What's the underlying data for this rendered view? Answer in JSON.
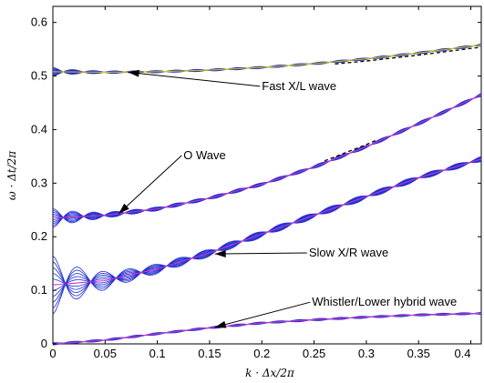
{
  "chart_data": {
    "type": "line",
    "title": "",
    "xlabel": "k · Δx/2π",
    "ylabel": "ω · Δt/2π",
    "xlim": [
      0,
      0.41
    ],
    "ylim": [
      0,
      0.63
    ],
    "grid": false,
    "x_ticks": [
      0,
      0.05,
      0.1,
      0.15,
      0.2,
      0.25,
      0.3,
      0.35,
      0.4
    ],
    "x_tick_labels": [
      "0",
      "0.05",
      "0.1",
      "0.15",
      "0.2",
      "0.25",
      "0.3",
      "0.35",
      "0.4"
    ],
    "y_ticks": [
      0,
      0.1,
      0.2,
      0.3,
      0.4,
      0.5,
      0.6
    ],
    "y_tick_labels": [
      "0",
      "0.1",
      "0.2",
      "0.3",
      "0.4",
      "0.5",
      "0.6"
    ],
    "colors": {
      "contour": "#1f2fd0",
      "theory": "#cc33cc",
      "fast_theory": "#d4c400",
      "dashed": "#111111"
    },
    "series": [
      {
        "key": "fast",
        "x": [
          0,
          0.05,
          0.1,
          0.15,
          0.2,
          0.25,
          0.3,
          0.35,
          0.41
        ],
        "y": [
          0.508,
          0.507,
          0.508,
          0.511,
          0.516,
          0.523,
          0.532,
          0.543,
          0.558
        ]
      },
      {
        "key": "o",
        "x": [
          0,
          0.05,
          0.1,
          0.15,
          0.2,
          0.25,
          0.3,
          0.35,
          0.41
        ],
        "y": [
          0.235,
          0.24,
          0.252,
          0.272,
          0.298,
          0.33,
          0.368,
          0.411,
          0.465
        ]
      },
      {
        "key": "slow",
        "x": [
          0,
          0.05,
          0.1,
          0.15,
          0.2,
          0.25,
          0.3,
          0.35,
          0.41
        ],
        "y": [
          0.11,
          0.118,
          0.14,
          0.17,
          0.205,
          0.24,
          0.275,
          0.31,
          0.345
        ]
      },
      {
        "key": "whistler",
        "x": [
          0,
          0.05,
          0.1,
          0.15,
          0.2,
          0.25,
          0.3,
          0.35,
          0.41
        ],
        "y": [
          0,
          0.007,
          0.019,
          0.03,
          0.039,
          0.045,
          0.05,
          0.054,
          0.057
        ]
      }
    ],
    "annotations": [
      {
        "text": "Fast X/L wave",
        "label_x": 0.2,
        "label_y": 0.474,
        "arrow_to": [
          0.072,
          0.507
        ]
      },
      {
        "text": "O Wave",
        "label_x": 0.125,
        "label_y": 0.345,
        "arrow_to": [
          0.063,
          0.243
        ]
      },
      {
        "text": "Slow X/R wave",
        "label_x": 0.245,
        "label_y": 0.163,
        "arrow_to": [
          0.155,
          0.168
        ]
      },
      {
        "text": "Whistler/Lower hybrid wave",
        "label_x": 0.248,
        "label_y": 0.071,
        "arrow_to": [
          0.155,
          0.031
        ]
      }
    ]
  }
}
